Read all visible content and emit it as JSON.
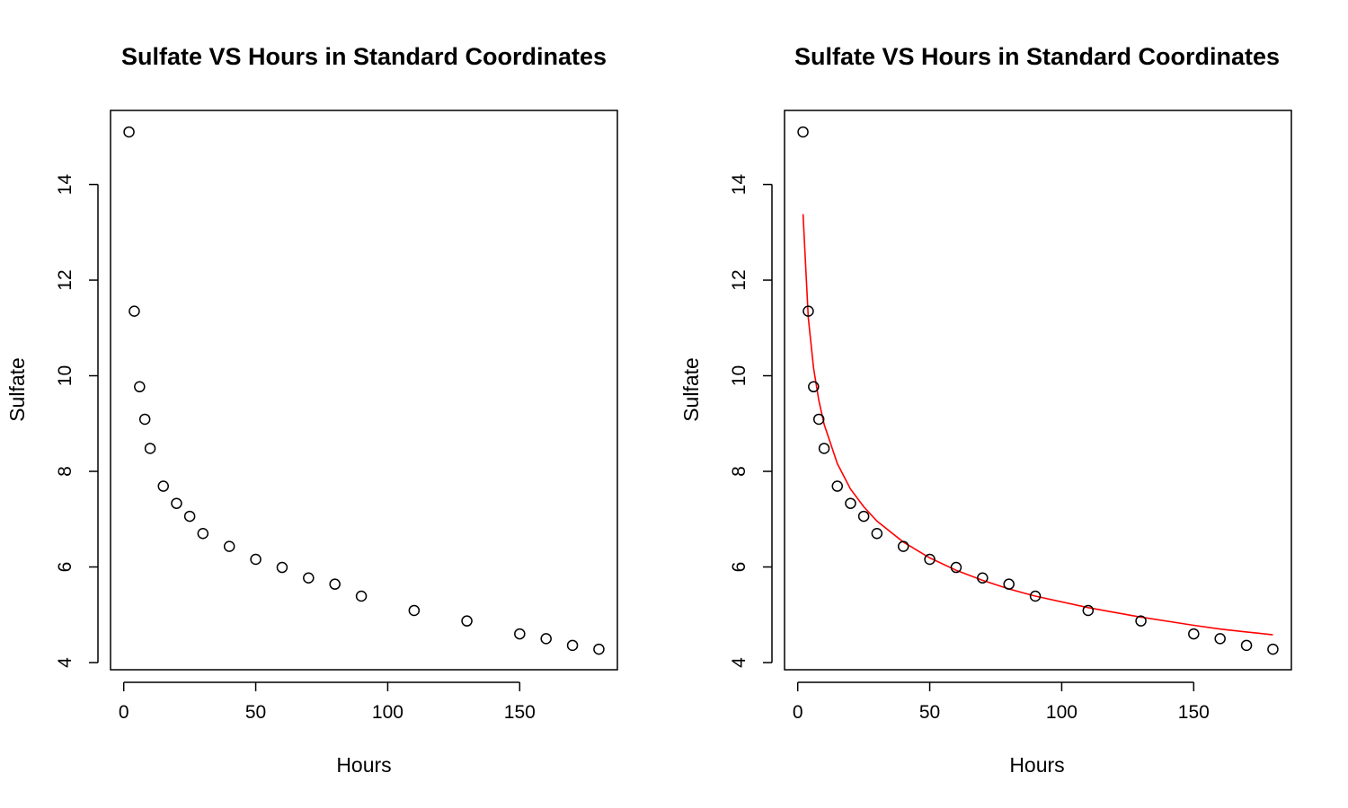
{
  "chart_data": [
    {
      "type": "scatter",
      "title": "Sulfate VS Hours in Standard Coordinates",
      "xlabel": "Hours",
      "ylabel": "Sulfate",
      "xlim": [
        -5,
        187
      ],
      "ylim": [
        3.85,
        15.55
      ],
      "xticks": [
        0,
        50,
        100,
        150
      ],
      "yticks": [
        4,
        6,
        8,
        10,
        12,
        14
      ],
      "grid": false,
      "series": [
        {
          "kind": "points",
          "marker": "open-circle",
          "color": "#000000",
          "x": [
            2,
            4,
            6,
            8,
            10,
            15,
            20,
            25,
            30,
            40,
            50,
            60,
            70,
            80,
            90,
            110,
            130,
            150,
            160,
            170,
            180
          ],
          "y": [
            15.1,
            11.35,
            9.77,
            9.09,
            8.48,
            7.69,
            7.33,
            7.06,
            6.7,
            6.43,
            6.16,
            5.99,
            5.77,
            5.64,
            5.39,
            5.09,
            4.87,
            4.6,
            4.5,
            4.36,
            4.28
          ]
        }
      ]
    },
    {
      "type": "scatter",
      "title": "Sulfate VS Hours in Standard Coordinates",
      "xlabel": "Hours",
      "ylabel": "Sulfate",
      "xlim": [
        -5,
        187
      ],
      "ylim": [
        3.85,
        15.55
      ],
      "xticks": [
        0,
        50,
        100,
        150
      ],
      "yticks": [
        4,
        6,
        8,
        10,
        12,
        14
      ],
      "grid": false,
      "series": [
        {
          "kind": "points",
          "marker": "open-circle",
          "color": "#000000",
          "x": [
            2,
            4,
            6,
            8,
            10,
            15,
            20,
            25,
            30,
            40,
            50,
            60,
            70,
            80,
            90,
            110,
            130,
            150,
            160,
            170,
            180
          ],
          "y": [
            15.1,
            11.35,
            9.77,
            9.09,
            8.48,
            7.69,
            7.33,
            7.06,
            6.7,
            6.43,
            6.16,
            5.99,
            5.77,
            5.64,
            5.39,
            5.09,
            4.87,
            4.6,
            4.5,
            4.36,
            4.28
          ]
        },
        {
          "kind": "line",
          "color": "#ff0000",
          "x": [
            2,
            4,
            6,
            8,
            10,
            15,
            20,
            25,
            30,
            40,
            50,
            60,
            70,
            80,
            90,
            110,
            130,
            150,
            160,
            170,
            180
          ],
          "y": [
            13.38,
            11.22,
            10.16,
            9.48,
            8.98,
            8.16,
            7.63,
            7.26,
            6.96,
            6.52,
            6.19,
            5.93,
            5.72,
            5.54,
            5.39,
            5.15,
            4.95,
            4.78,
            4.7,
            4.64,
            4.58
          ]
        }
      ]
    }
  ]
}
